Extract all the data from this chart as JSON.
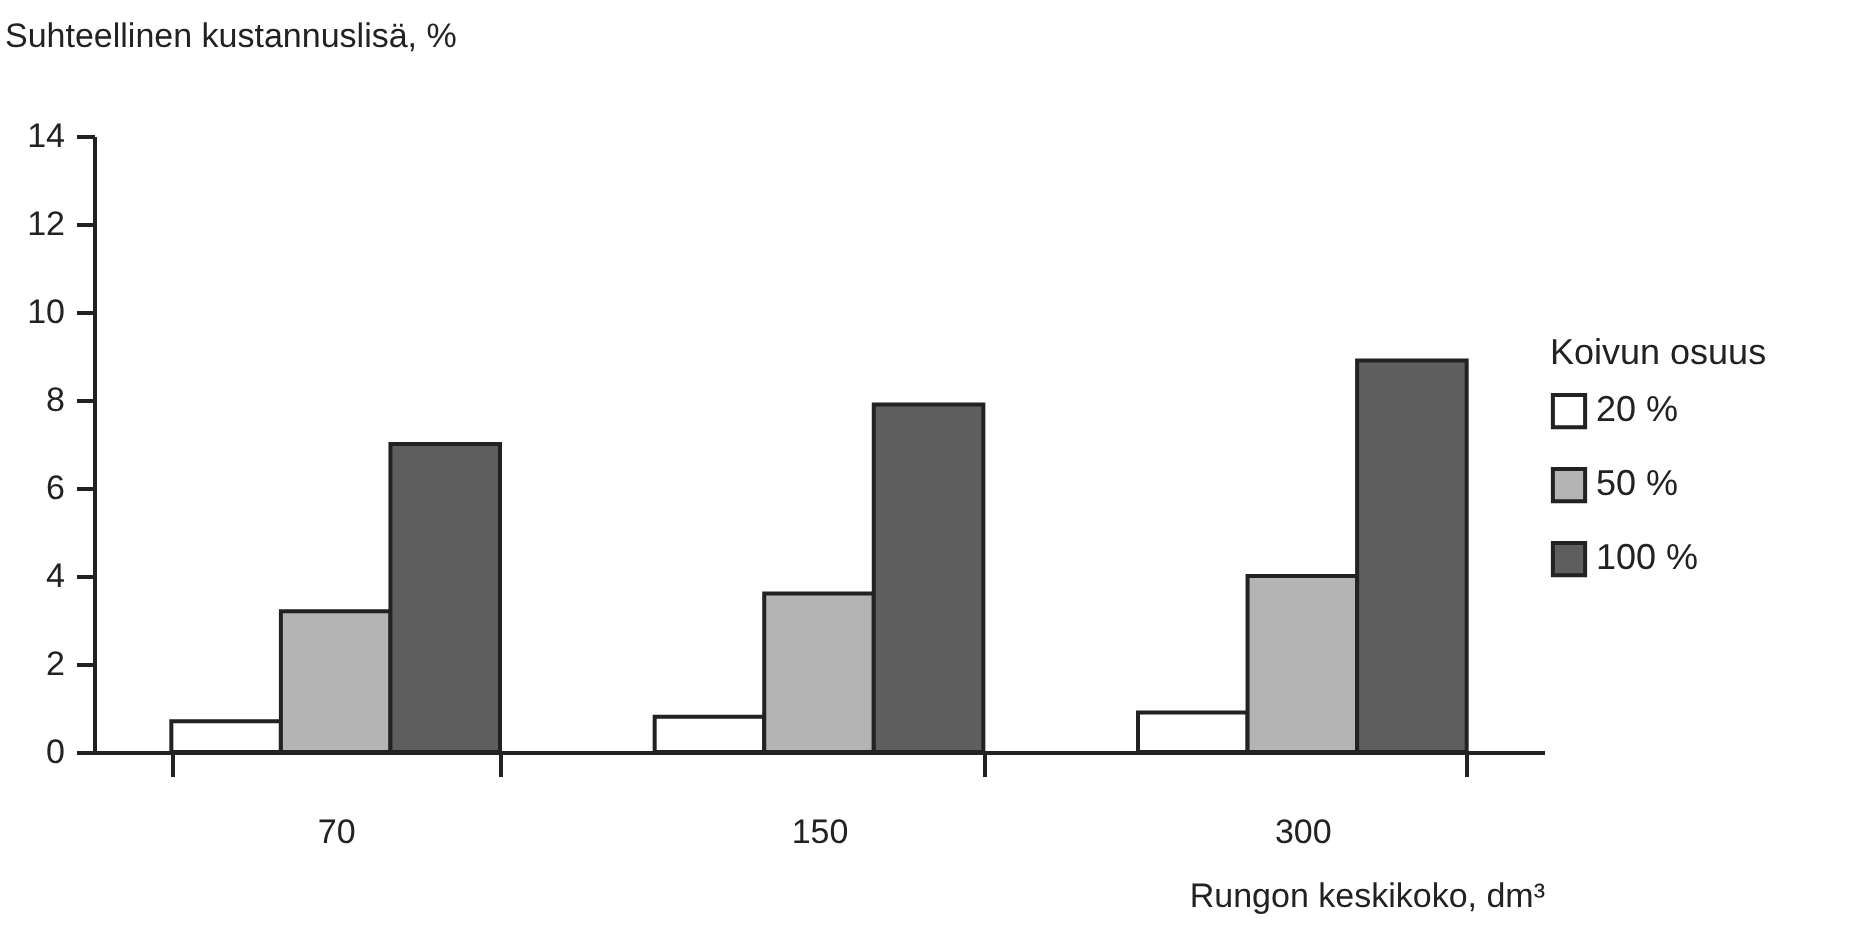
{
  "chart_data": {
    "type": "bar",
    "ylabel": "Suhteellinen kustannuslisä, %",
    "xlabel": "Rungon keskikoko,  dm³",
    "legend_title": "Koivun osuus",
    "categories": [
      "70",
      "150",
      "300"
    ],
    "series": [
      {
        "name": "20 %",
        "color": "#ffffff",
        "values": [
          0.7,
          0.8,
          0.9
        ]
      },
      {
        "name": "50 %",
        "color": "#b4b4b4",
        "values": [
          3.2,
          3.6,
          4.0
        ]
      },
      {
        "name": "100 %",
        "color": "#5e5e5e",
        "values": [
          7.0,
          7.9,
          8.9
        ]
      }
    ],
    "ylim": [
      0,
      14
    ],
    "yticks": [
      0,
      2,
      4,
      6,
      8,
      10,
      12,
      14
    ],
    "grid": false,
    "legend": "right"
  }
}
